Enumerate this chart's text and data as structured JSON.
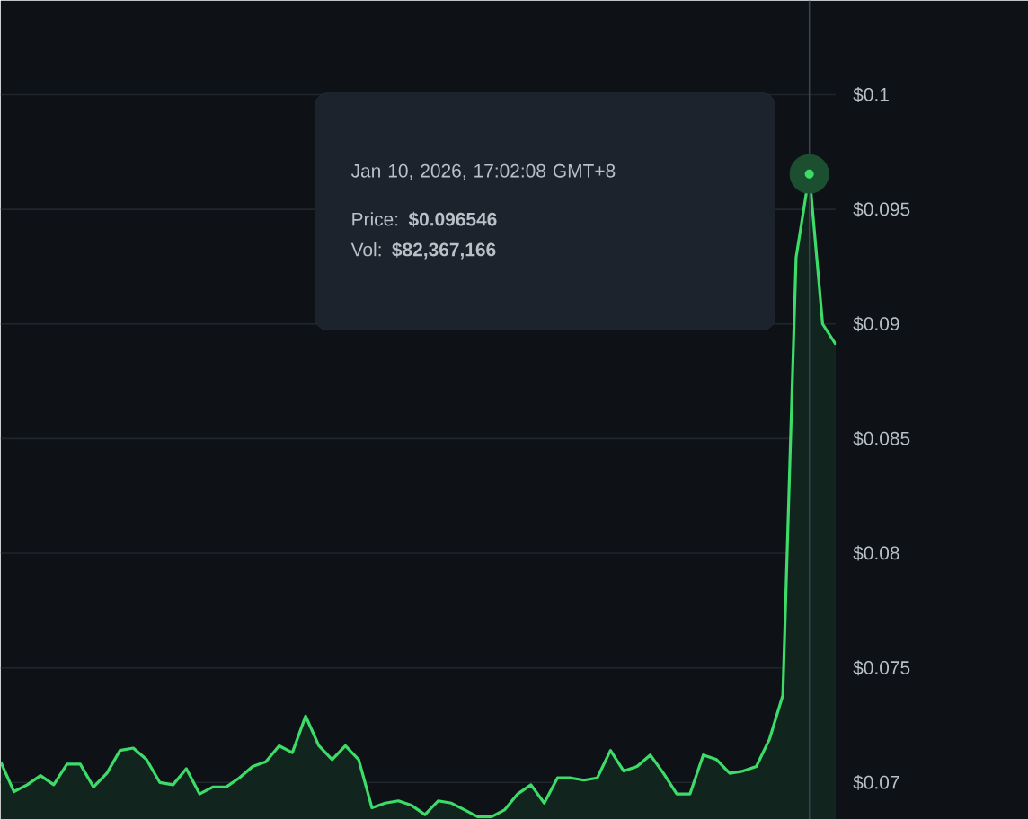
{
  "chart_data": {
    "type": "area",
    "categories": [
      null,
      null,
      null,
      null,
      null,
      null,
      null,
      null,
      null,
      null,
      null,
      null,
      null,
      null,
      null,
      null,
      null,
      null,
      null,
      null,
      null,
      null,
      null,
      null,
      null,
      null,
      null,
      null,
      null,
      null,
      null,
      null,
      null,
      null,
      null,
      null,
      null,
      null,
      null,
      null,
      null,
      null,
      null,
      null,
      null,
      null,
      null,
      null,
      null,
      null,
      null,
      null,
      null,
      null,
      null,
      null,
      null,
      null,
      null,
      null,
      null,
      null,
      null,
      null
    ],
    "values": [
      0.0709,
      0.0696,
      0.0699,
      0.0703,
      0.0699,
      0.0708,
      0.0708,
      0.0698,
      0.0704,
      0.0714,
      0.0715,
      0.071,
      0.07,
      0.0699,
      0.0706,
      0.0695,
      0.0698,
      0.0698,
      0.0702,
      0.0707,
      0.0709,
      0.0716,
      0.0713,
      0.0729,
      0.0716,
      0.071,
      0.0716,
      0.071,
      0.0689,
      0.0691,
      0.0692,
      0.069,
      0.0686,
      0.0692,
      0.0691,
      0.0688,
      0.0685,
      0.0685,
      0.0688,
      0.0695,
      0.0699,
      0.0691,
      0.0702,
      0.0702,
      0.0701,
      0.0702,
      0.0714,
      0.0705,
      0.0707,
      0.0712,
      0.0704,
      0.0695,
      0.0695,
      0.0712,
      0.071,
      0.0704,
      0.0705,
      0.0707,
      0.0719,
      0.0738,
      0.0929,
      0.096546,
      0.09,
      0.0891
    ],
    "color": "#3ddc68",
    "ylim": [
      0.0684,
      0.1041
    ],
    "yticks": [
      {
        "value": 0.07,
        "label": "$0.07"
      },
      {
        "value": 0.075,
        "label": "$0.075"
      },
      {
        "value": 0.08,
        "label": "$0.08"
      },
      {
        "value": 0.085,
        "label": "$0.085"
      },
      {
        "value": 0.09,
        "label": "$0.09"
      },
      {
        "value": 0.095,
        "label": "$0.095"
      },
      {
        "value": 0.1,
        "label": "$0.1"
      }
    ],
    "grid": "y",
    "tick_labels": "y",
    "marker": "none",
    "annotations": [
      "Jan 10, 2026, 17:02:08 GMT+8",
      "Price: **$0.096546**",
      "Vol: **$82,367,166**"
    ]
  }
}
